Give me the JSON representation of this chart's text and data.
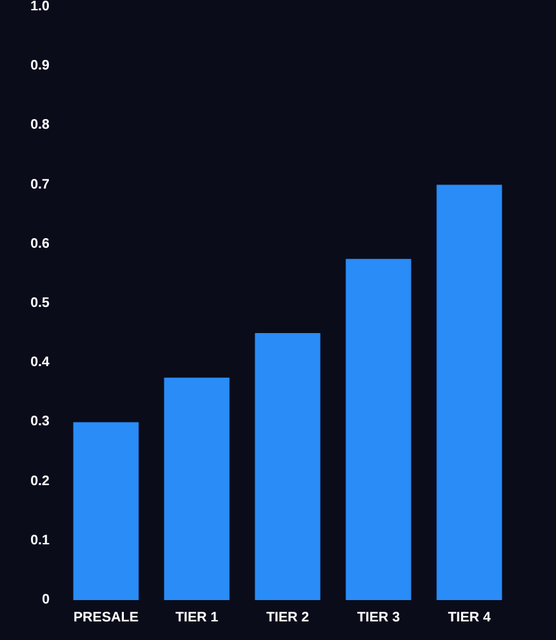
{
  "chart_data": {
    "type": "bar",
    "categories": [
      "PRESALE",
      "TIER 1",
      "TIER 2",
      "TIER 3",
      "TIER 4"
    ],
    "values": [
      0.3,
      0.375,
      0.45,
      0.575,
      0.7
    ],
    "color": "#2a8cf7",
    "ylim": [
      0,
      1
    ],
    "yticks": [
      0,
      0.1,
      0.2,
      0.3,
      0.4,
      0.5,
      0.6,
      0.7,
      0.8,
      0.9,
      {
        "value": 1,
        "label": "1.0"
      }
    ],
    "grid": false
  }
}
